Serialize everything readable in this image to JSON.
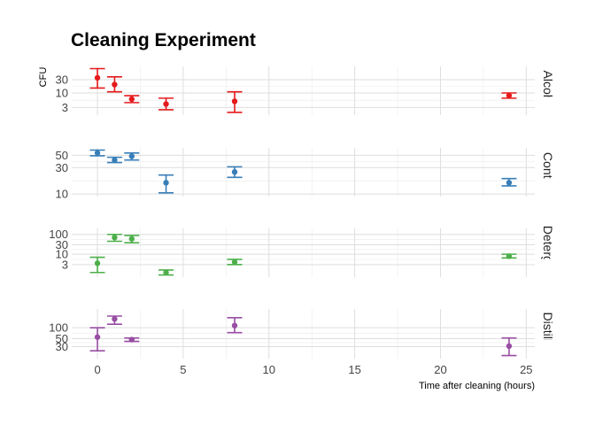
{
  "chart_data": {
    "type": "scatter",
    "title": "Cleaning Experiment",
    "xlabel": "Time after cleaning (hours)",
    "ylabel": "CFU",
    "xlim": [
      -1.5,
      25.5
    ],
    "xticks": [
      0,
      5,
      10,
      15,
      20,
      25
    ],
    "grid": true,
    "panels": [
      {
        "name": "Alcohol",
        "color": "#e41a1c",
        "ylim": [
          1.6,
          90
        ],
        "yticks": [
          3,
          10,
          30
        ],
        "tick_labels": [
          "3",
          "10",
          "30"
        ],
        "points": [
          {
            "x": 0,
            "y": 35,
            "low": 15,
            "high": 75
          },
          {
            "x": 1,
            "y": 20,
            "low": 11,
            "high": 38
          },
          {
            "x": 2,
            "y": 6,
            "low": 4.5,
            "high": 8
          },
          {
            "x": 4,
            "y": 4,
            "low": 2.5,
            "high": 6.5
          },
          {
            "x": 8,
            "y": 5,
            "low": 2,
            "high": 11
          },
          {
            "x": 24,
            "y": 8,
            "low": 6.5,
            "high": 10
          }
        ]
      },
      {
        "name": "Control",
        "color": "#377eb8",
        "ylim": [
          9,
          68
        ],
        "yticks": [
          10,
          30,
          50
        ],
        "tick_labels": [
          "10",
          "30",
          "50"
        ],
        "points": [
          {
            "x": 0,
            "y": 55,
            "low": 49,
            "high": 62
          },
          {
            "x": 1,
            "y": 41,
            "low": 37,
            "high": 46
          },
          {
            "x": 2,
            "y": 48,
            "low": 41,
            "high": 55
          },
          {
            "x": 4,
            "y": 16,
            "low": 10.5,
            "high": 22
          },
          {
            "x": 8,
            "y": 25,
            "low": 20,
            "high": 31
          },
          {
            "x": 24,
            "y": 16,
            "low": 14,
            "high": 19
          }
        ]
      },
      {
        "name": "Detergent",
        "color": "#4daf4a",
        "ylim": [
          0.7,
          200
        ],
        "yticks": [
          3,
          10,
          30,
          100
        ],
        "tick_labels": [
          "3",
          "10",
          "30",
          "100"
        ],
        "points": [
          {
            "x": 0,
            "y": 3.5,
            "low": 1.2,
            "high": 7
          },
          {
            "x": 1,
            "y": 70,
            "low": 45,
            "high": 100
          },
          {
            "x": 2,
            "y": 60,
            "low": 38,
            "high": 88
          },
          {
            "x": 4,
            "y": 1.2,
            "low": 0.9,
            "high": 1.6
          },
          {
            "x": 8,
            "y": 4,
            "low": 3,
            "high": 5.5
          },
          {
            "x": 24,
            "y": 8,
            "low": 6.5,
            "high": 10
          }
        ]
      },
      {
        "name": "Distilled",
        "color": "#984ea3",
        "ylim": [
          14,
          330
        ],
        "yticks": [
          30,
          50,
          100
        ],
        "tick_labels": [
          "30",
          "50",
          "100"
        ],
        "points": [
          {
            "x": 0,
            "y": 55,
            "low": 23,
            "high": 100
          },
          {
            "x": 1,
            "y": 175,
            "low": 125,
            "high": 210
          },
          {
            "x": 2,
            "y": 47,
            "low": 42,
            "high": 52
          },
          {
            "x": 8,
            "y": 115,
            "low": 73,
            "high": 190
          },
          {
            "x": 24,
            "y": 31,
            "low": 17,
            "high": 52
          }
        ]
      }
    ]
  }
}
